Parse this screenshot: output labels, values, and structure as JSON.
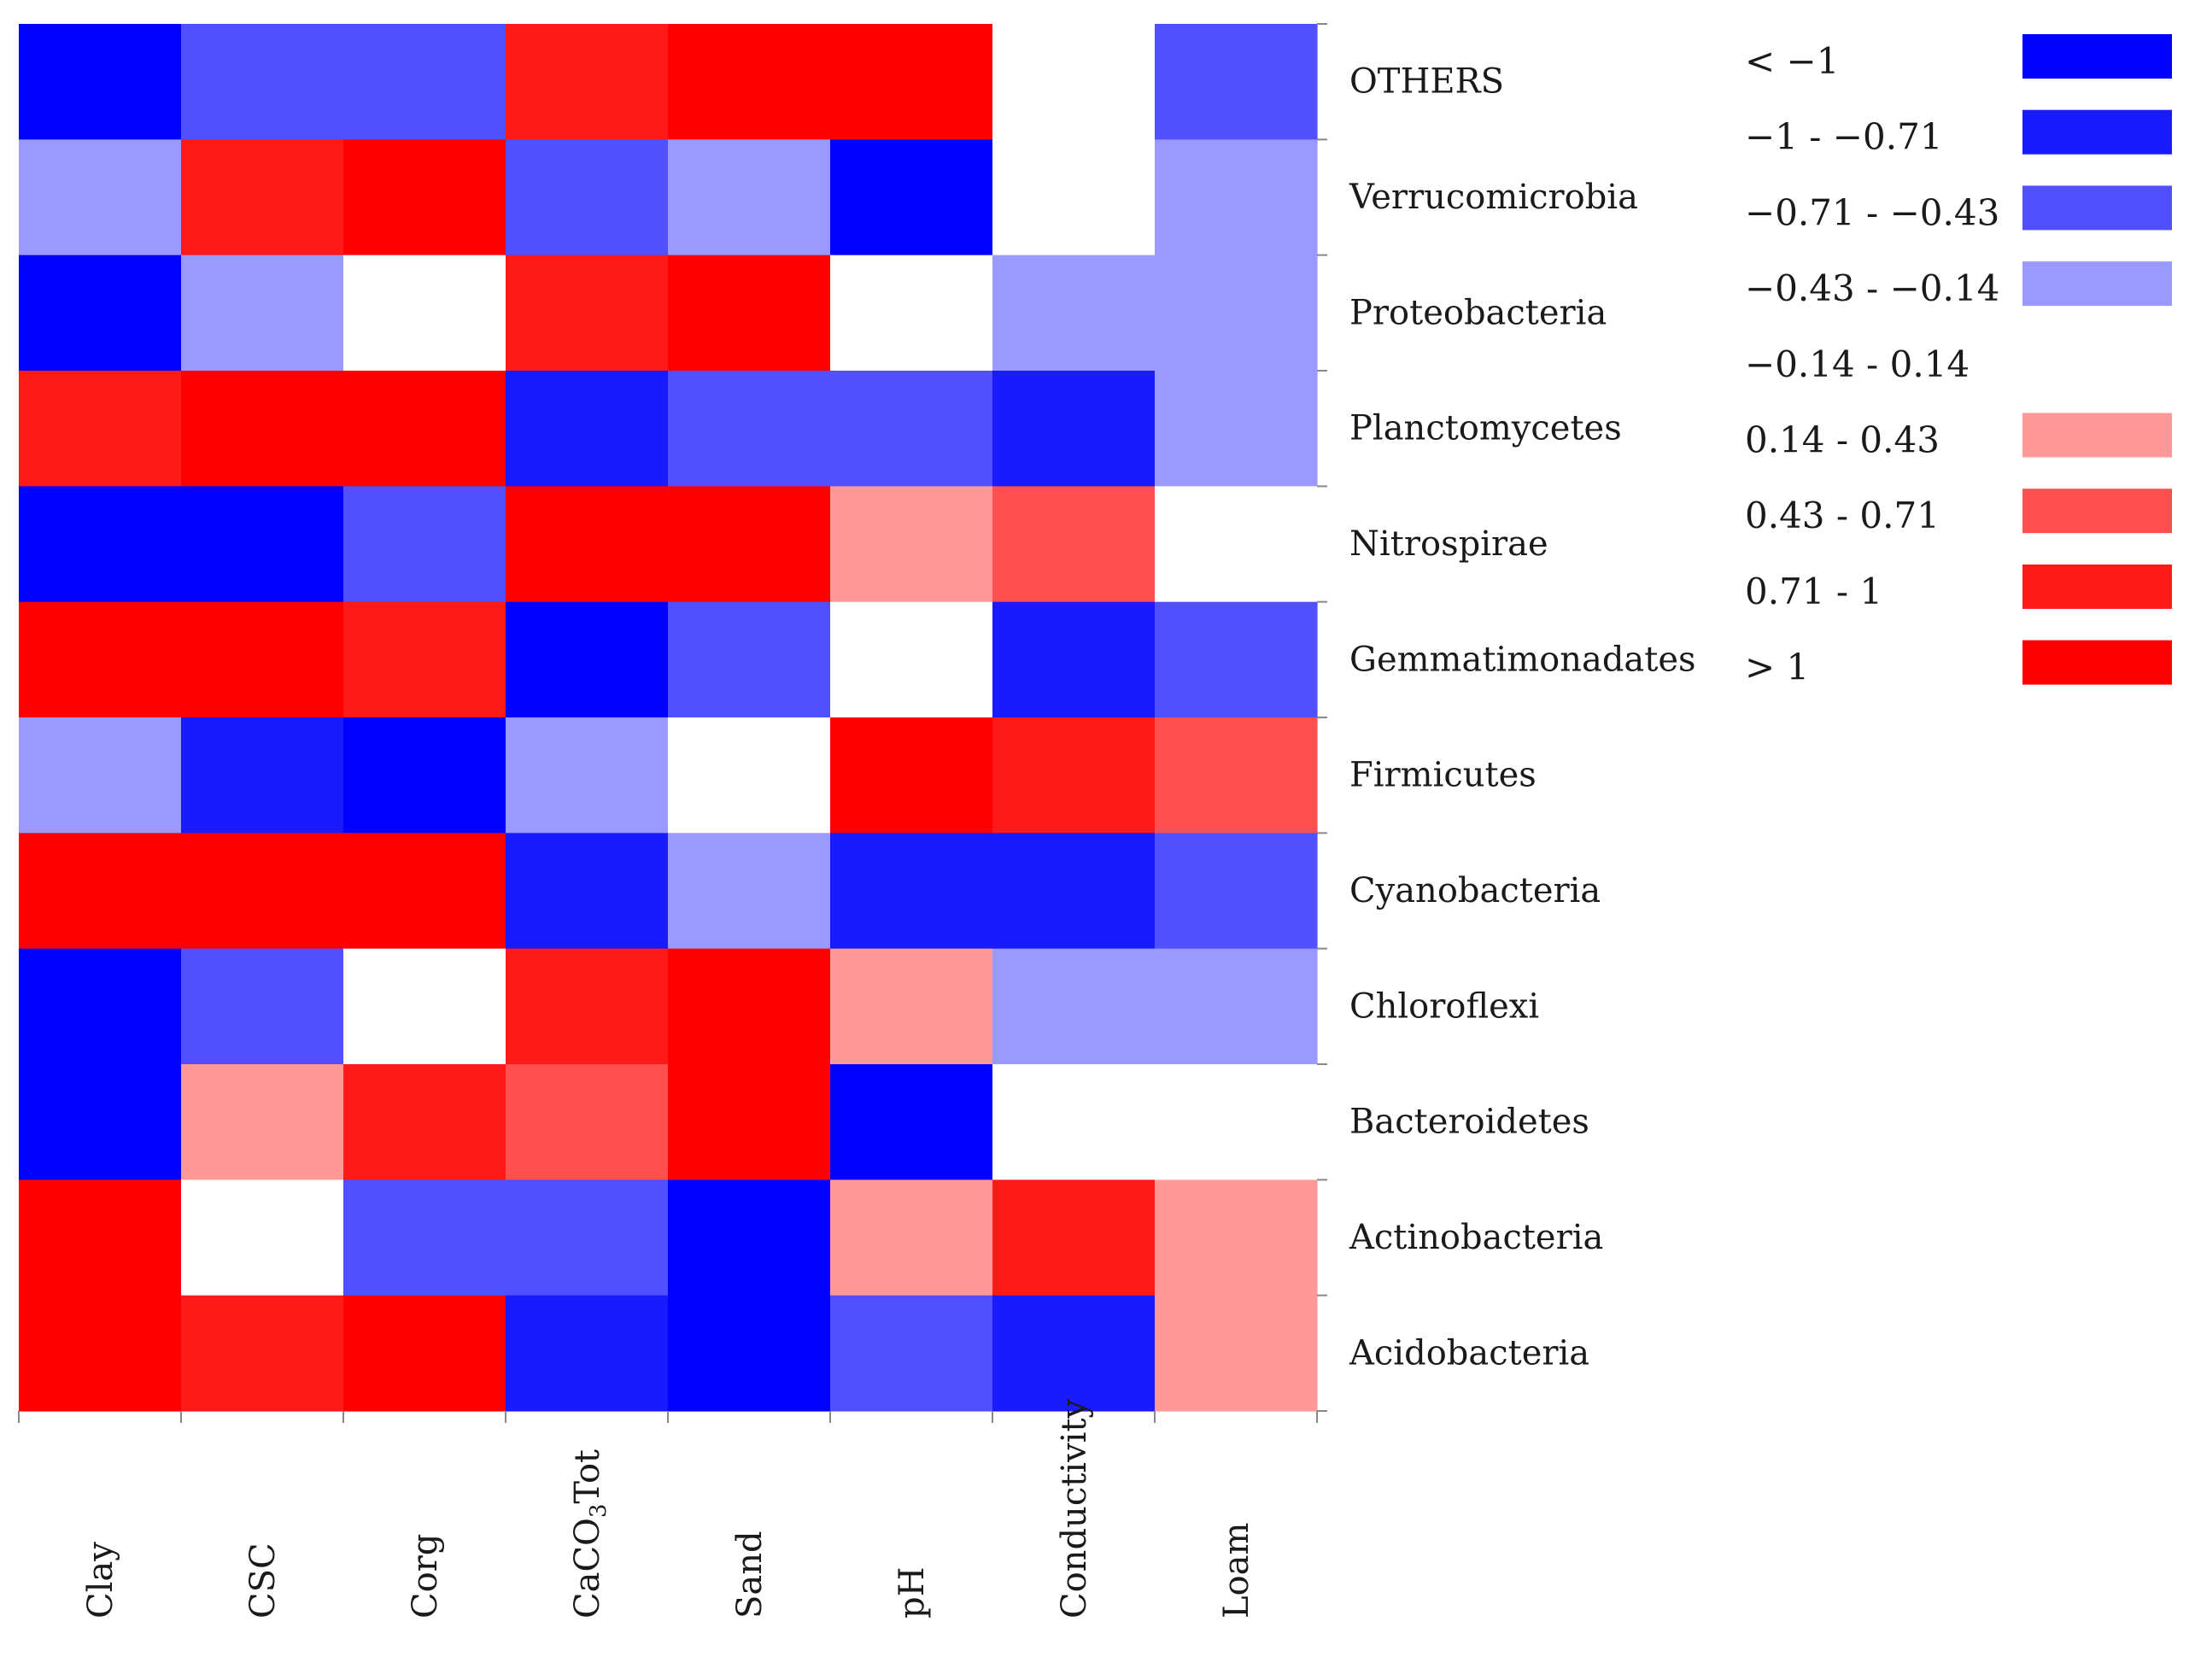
{
  "chart_data": {
    "type": "heatmap",
    "title": "",
    "columns": [
      "Clay",
      "CSC",
      "Corg",
      "CaCO3Tot",
      "Sand",
      "pH",
      "Conductivity",
      "Loam"
    ],
    "rows": [
      "OTHERS",
      "Verrucomicrobia",
      "Proteobacteria",
      "Planctomycetes",
      "Nitrospirae",
      "Gemmatimonadates",
      "Firmicutes",
      "Cyanobacteria",
      "Chloroflexi",
      "Bacteroidetes",
      "Actinobacteria",
      "Acidobacteria"
    ],
    "bins": [
      {
        "label": "< −1",
        "color": "#0000ff"
      },
      {
        "label": "−1 - −0.71",
        "color": "#1a1aff"
      },
      {
        "label": "−0.71 - −0.43",
        "color": "#5050ff"
      },
      {
        "label": "−0.43 - −0.14",
        "color": "#9999ff"
      },
      {
        "label": "−0.14 - 0.14",
        "color": "#ffffff"
      },
      {
        "label": "0.14 - 0.43",
        "color": "#ff9999"
      },
      {
        "label": "0.43 - 0.71",
        "color": "#ff5050"
      },
      {
        "label": "0.71 - 1",
        "color": "#ff1a1a"
      },
      {
        "label": "> 1",
        "color": "#ff0000"
      }
    ],
    "values": [
      [
        0,
        2,
        2,
        7,
        8,
        8,
        4,
        2
      ],
      [
        3,
        7,
        8,
        2,
        3,
        0,
        4,
        3
      ],
      [
        0,
        3,
        4,
        7,
        8,
        4,
        3,
        3
      ],
      [
        7,
        8,
        8,
        1,
        2,
        2,
        1,
        3
      ],
      [
        0,
        0,
        2,
        8,
        8,
        5,
        6,
        4
      ],
      [
        8,
        8,
        7,
        0,
        2,
        4,
        1,
        2
      ],
      [
        3,
        1,
        0,
        3,
        4,
        8,
        7,
        6
      ],
      [
        8,
        8,
        8,
        1,
        3,
        1,
        1,
        2
      ],
      [
        0,
        2,
        4,
        7,
        8,
        5,
        3,
        3
      ],
      [
        0,
        5,
        7,
        6,
        8,
        0,
        4,
        4
      ],
      [
        8,
        4,
        2,
        2,
        0,
        5,
        7,
        5
      ],
      [
        8,
        7,
        8,
        1,
        0,
        2,
        1,
        5
      ]
    ]
  }
}
